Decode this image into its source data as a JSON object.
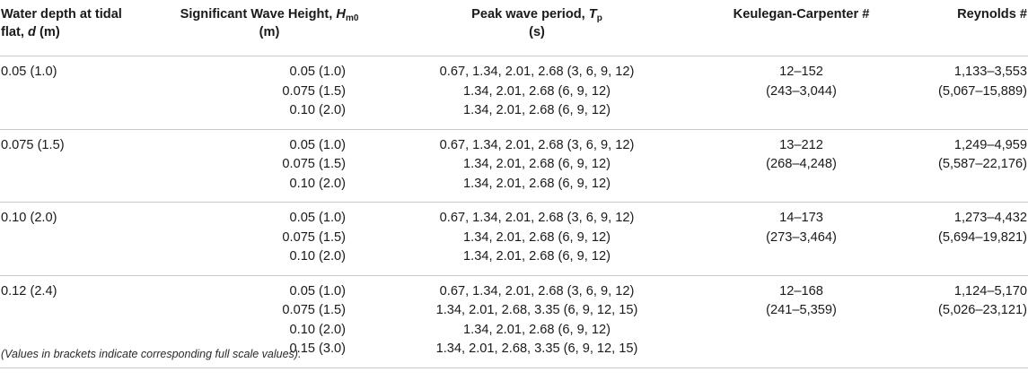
{
  "header": {
    "col_depth_line1": "Water depth at tidal",
    "col_depth_line2_pre": "flat, ",
    "col_depth_symbol": "d",
    "col_depth_line2_post": " (m)",
    "col_height_line1_pre": "Significant Wave Height, ",
    "col_height_symbol": "H",
    "col_height_sub": "m0",
    "col_height_line2": "(m)",
    "col_period_line1_pre": "Peak wave period, ",
    "col_period_symbol": "T",
    "col_period_sub": "p",
    "col_period_line2": "(s)",
    "col_kc": "Keulegan-Carpenter #",
    "col_re": "Reynolds #"
  },
  "rows": [
    {
      "depth": "0.05 (1.0)",
      "heights": [
        "0.05 (1.0)",
        "0.075 (1.5)",
        "0.10 (2.0)"
      ],
      "periods": [
        "0.67, 1.34, 2.01, 2.68 (3, 6, 9, 12)",
        "1.34, 2.01, 2.68 (6, 9, 12)",
        "1.34, 2.01, 2.68 (6, 9, 12)"
      ],
      "kc": [
        "12–152",
        "(243–3,044)"
      ],
      "re": [
        "1,133–3,553",
        "(5,067–15,889)"
      ]
    },
    {
      "depth": "0.075 (1.5)",
      "heights": [
        "0.05 (1.0)",
        "0.075 (1.5)",
        "0.10 (2.0)"
      ],
      "periods": [
        "0.67, 1.34, 2.01, 2.68 (3, 6, 9, 12)",
        "1.34, 2.01, 2.68 (6, 9, 12)",
        "1.34, 2.01, 2.68 (6, 9, 12)"
      ],
      "kc": [
        "13–212",
        "(268–4,248)"
      ],
      "re": [
        "1,249–4,959",
        "(5,587–22,176)"
      ]
    },
    {
      "depth": "0.10 (2.0)",
      "heights": [
        "0.05 (1.0)",
        "0.075 (1.5)",
        "0.10 (2.0)"
      ],
      "periods": [
        "0.67, 1.34, 2.01, 2.68 (3, 6, 9, 12)",
        "1.34, 2.01, 2.68 (6, 9, 12)",
        "1.34, 2.01, 2.68 (6, 9, 12)"
      ],
      "kc": [
        "14–173",
        "(273–3,464)"
      ],
      "re": [
        "1,273–4,432",
        "(5,694–19,821)"
      ]
    },
    {
      "depth": "0.12 (2.4)",
      "heights": [
        "0.05 (1.0)",
        "0.075 (1.5)",
        "0.10 (2.0)",
        "0.15 (3.0)"
      ],
      "periods": [
        "0.67, 1.34, 2.01, 2.68 (3, 6, 9, 12)",
        "1.34, 2.01, 2.68, 3.35 (6, 9, 12, 15)",
        "1.34, 2.01, 2.68 (6, 9, 12)",
        "1.34, 2.01, 2.68, 3.35 (6, 9, 12, 15)"
      ],
      "kc": [
        "12–168",
        "(241–5,359)"
      ],
      "re": [
        "1,124–5,170",
        "(5,026–23,121)"
      ]
    }
  ],
  "footnote": "(Values in brackets indicate corresponding full scale values)."
}
